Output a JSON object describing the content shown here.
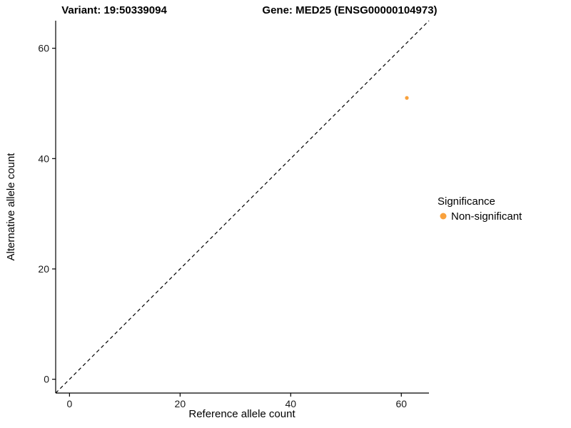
{
  "chart_data": {
    "type": "scatter",
    "title_left": "Variant: 19:50339094",
    "title_right": "Gene: MED25 (ENSG00000104973)",
    "xlabel": "Reference allele count",
    "ylabel": "Alternative allele count",
    "xticks": [
      0,
      20,
      40,
      60
    ],
    "yticks": [
      0,
      20,
      40,
      60
    ],
    "xlim": [
      -2.5,
      65
    ],
    "ylim": [
      -2.5,
      65
    ],
    "grid": "off",
    "points": [
      {
        "x": 61,
        "y": 51,
        "series": "Non-significant"
      }
    ],
    "identity_line": {
      "type": "dashed",
      "slope": 1,
      "intercept": 0,
      "color": "#000000"
    },
    "legend": {
      "position": "right",
      "title": "Significance",
      "entries": [
        {
          "label": "Non-significant",
          "color": "#F9A13C"
        }
      ]
    },
    "colors": {
      "point": "#F9A13C",
      "axis": "#000000",
      "background": "#FFFFFF"
    }
  }
}
